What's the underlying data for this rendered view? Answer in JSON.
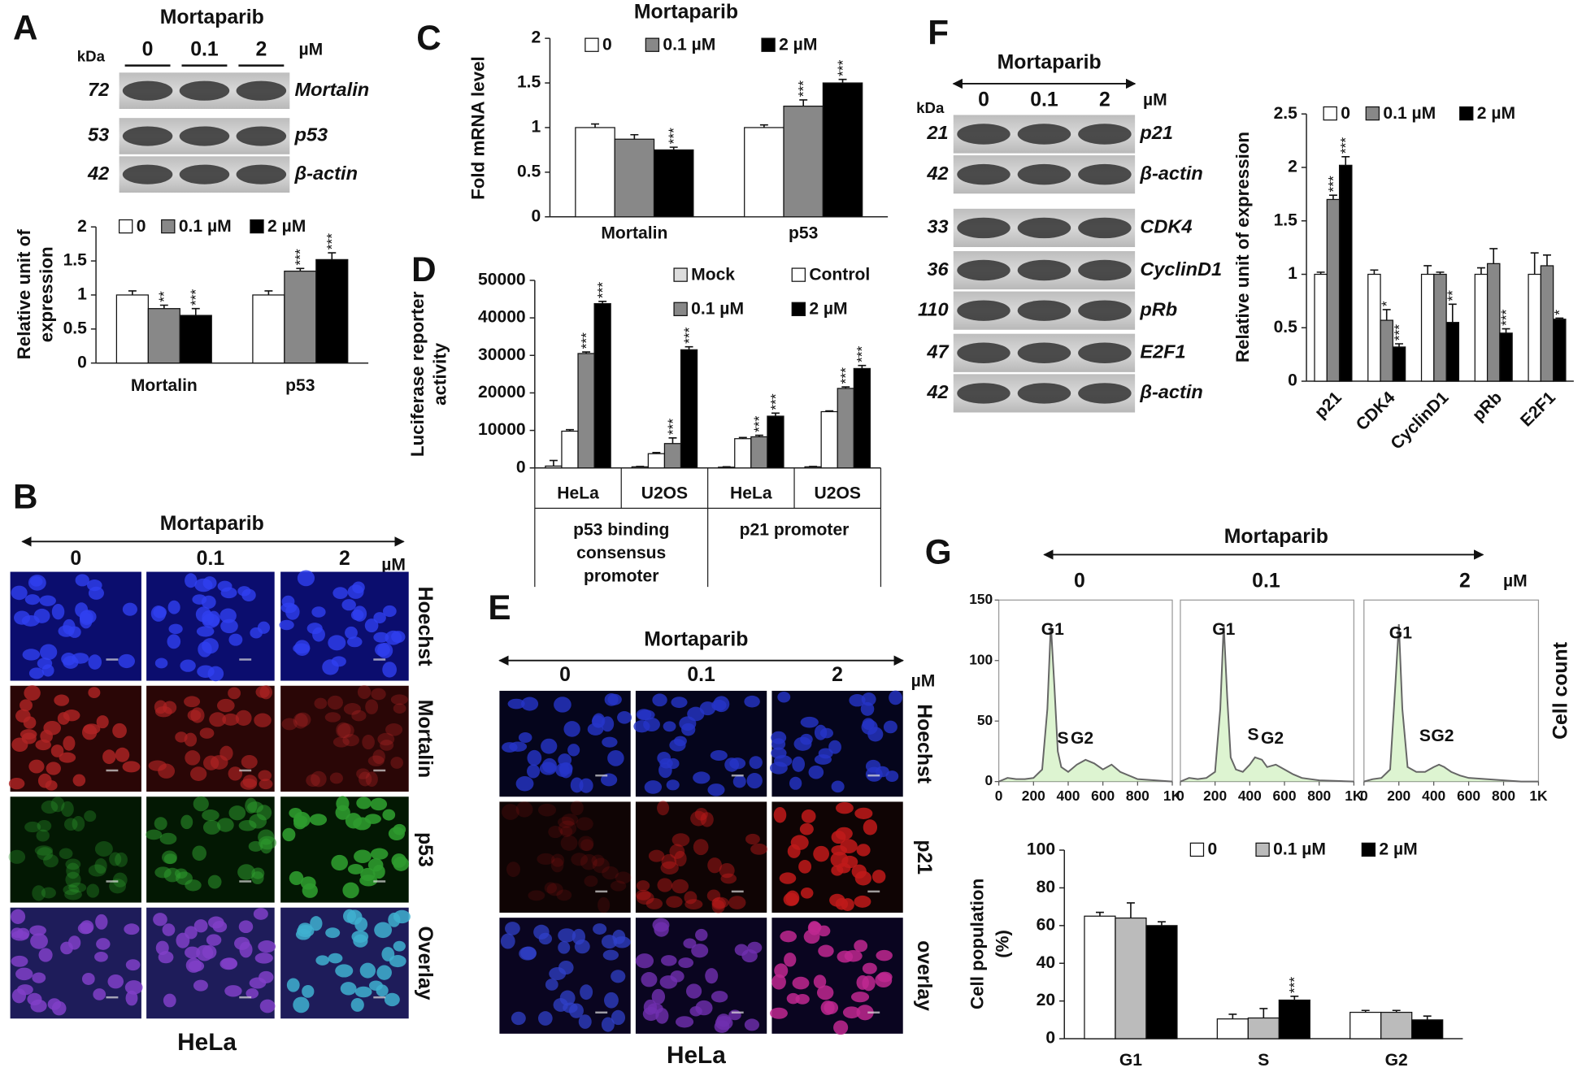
{
  "chart_data": [
    {
      "type": "bar",
      "ylabel": [
        "Relative unit of",
        "expression"
      ],
      "categories": [
        "Mortalin",
        "p53"
      ],
      "series": [
        {
          "name": "0",
          "color": "#ffffff",
          "values": [
            1,
            1
          ],
          "errors": [
            0.06,
            0.06
          ],
          "significance": [
            null,
            null
          ]
        },
        {
          "name": "0.1 µM",
          "color": "#888888",
          "values": [
            0.8,
            1.35
          ],
          "errors": [
            0.05,
            0.04
          ],
          "significance": [
            "**",
            "***"
          ]
        },
        {
          "name": "2 µM",
          "color": "#000000",
          "values": [
            0.7,
            1.52
          ],
          "errors": [
            0.1,
            0.1
          ],
          "significance": [
            "***",
            "***"
          ]
        }
      ],
      "ylim": [
        0,
        2
      ],
      "yticks": [
        0,
        0.5,
        1,
        1.5,
        2
      ]
    },
    {
      "type": "bar",
      "title": "Mortaparib",
      "ylabel": [
        "Fold mRNA level"
      ],
      "categories": [
        "Mortalin",
        "p53"
      ],
      "series": [
        {
          "name": "0",
          "color": "#ffffff",
          "values": [
            1,
            1
          ],
          "errors": [
            0.04,
            0.03
          ],
          "significance": [
            null,
            null
          ]
        },
        {
          "name": "0.1 µM",
          "color": "#888888",
          "values": [
            0.87,
            1.24
          ],
          "errors": [
            0.05,
            0.07
          ],
          "significance": [
            null,
            "***"
          ]
        },
        {
          "name": "2 µM",
          "color": "#000000",
          "values": [
            0.75,
            1.5
          ],
          "errors": [
            0.03,
            0.04
          ],
          "significance": [
            "***",
            "***"
          ]
        }
      ],
      "ylim": [
        0,
        2
      ],
      "yticks": [
        0,
        0.5,
        1,
        1.5,
        2
      ]
    },
    {
      "type": "bar",
      "ylabel": [
        "Luciferase reporter",
        "activity"
      ],
      "categories": [
        "HeLa",
        "U2OS",
        "HeLa",
        "U2OS"
      ],
      "groups": [
        [
          "p53 binding",
          "consensus",
          "promoter"
        ],
        [
          "p21 promoter"
        ]
      ],
      "series": [
        {
          "name": "Mock",
          "color": "#dddddd",
          "values": [
            500,
            300,
            200,
            300
          ],
          "errors": [
            1500,
            100,
            100,
            100
          ],
          "significance": [
            null,
            null,
            null,
            null
          ]
        },
        {
          "name": "Control",
          "color": "#ffffff",
          "values": [
            9800,
            3800,
            7800,
            15000
          ],
          "errors": [
            400,
            300,
            300,
            200
          ],
          "significance": [
            null,
            null,
            null,
            null
          ]
        },
        {
          "name": "0.1 µM",
          "color": "#888888",
          "values": [
            30500,
            6500,
            8300,
            21200
          ],
          "errors": [
            400,
            1500,
            400,
            400
          ],
          "significance": [
            "***",
            "***",
            "***",
            "***"
          ]
        },
        {
          "name": "2 µM",
          "color": "#000000",
          "values": [
            43800,
            31500,
            13800,
            26500
          ],
          "errors": [
            600,
            800,
            800,
            800
          ],
          "significance": [
            "***",
            "***",
            "***",
            "***"
          ]
        }
      ],
      "ylim": [
        0,
        50000
      ],
      "yticks": [
        0,
        10000,
        20000,
        30000,
        40000,
        50000
      ]
    },
    {
      "type": "bar",
      "ylabel": [
        "Relative unit of expression"
      ],
      "categories": [
        "p21",
        "CDK4",
        "CyclinD1",
        "pRb",
        "E2F1"
      ],
      "series": [
        {
          "name": "0",
          "color": "#ffffff",
          "values": [
            1,
            1,
            1,
            1,
            1
          ],
          "errors": [
            0.02,
            0.04,
            0.08,
            0.06,
            0.2
          ],
          "significance": [
            null,
            null,
            null,
            null,
            null
          ]
        },
        {
          "name": "0.1 µM",
          "color": "#888888",
          "values": [
            1.7,
            0.57,
            1.0,
            1.1,
            1.08
          ],
          "errors": [
            0.04,
            0.1,
            0.02,
            0.14,
            0.1
          ],
          "significance": [
            "***",
            "*",
            null,
            null,
            null
          ]
        },
        {
          "name": "2 µM",
          "color": "#000000",
          "values": [
            2.02,
            0.32,
            0.55,
            0.45,
            0.58
          ],
          "errors": [
            0.08,
            0.03,
            0.17,
            0.04,
            0.01
          ],
          "significance": [
            "***",
            "***",
            "**",
            "***",
            "*"
          ]
        }
      ],
      "ylim": [
        0,
        2.5
      ],
      "yticks": [
        0,
        0.5,
        1,
        1.5,
        2,
        2.5
      ]
    },
    {
      "type": "line",
      "color": "#666666",
      "x": [
        0,
        50,
        100,
        150,
        200,
        250,
        280,
        300,
        320,
        340,
        360,
        400,
        450,
        500,
        550,
        600,
        650,
        700,
        800,
        900,
        1000
      ],
      "values": [
        0,
        3,
        2,
        2,
        3,
        10,
        60,
        130,
        80,
        25,
        12,
        8,
        14,
        18,
        15,
        10,
        14,
        8,
        2,
        1,
        0
      ],
      "annotations": [
        {
          "text": "G1",
          "x": 310,
          "y": 125
        },
        {
          "text": "S",
          "x": 370,
          "y": 35
        },
        {
          "text": "G2",
          "x": 480,
          "y": 35
        }
      ],
      "xlim": [
        0,
        1000
      ],
      "xticks": [
        0,
        200,
        400,
        600,
        800,
        {
          "value": 1000,
          "label": "1K"
        }
      ],
      "ylim": [
        0,
        150
      ],
      "yticks": [
        0,
        50,
        100,
        150
      ]
    },
    {
      "type": "line",
      "color": "#666666",
      "x": [
        0,
        50,
        100,
        150,
        200,
        230,
        250,
        270,
        290,
        320,
        360,
        400,
        430,
        470,
        500,
        550,
        600,
        650,
        700,
        800,
        1000
      ],
      "values": [
        0,
        3,
        2,
        3,
        8,
        60,
        130,
        70,
        20,
        10,
        8,
        14,
        20,
        18,
        12,
        14,
        10,
        6,
        3,
        1,
        0
      ],
      "annotations": [
        {
          "text": "G1",
          "x": 250,
          "y": 125
        },
        {
          "text": "S",
          "x": 420,
          "y": 38
        },
        {
          "text": "G2",
          "x": 530,
          "y": 35
        }
      ],
      "xlim": [
        0,
        1000
      ],
      "xticks": [
        0,
        200,
        400,
        600,
        800,
        {
          "value": 1000,
          "label": "1K"
        }
      ],
      "ylim": [
        0,
        150
      ]
    },
    {
      "type": "line",
      "color": "#666666",
      "x": [
        0,
        50,
        100,
        150,
        180,
        200,
        220,
        250,
        300,
        350,
        400,
        430,
        460,
        500,
        550,
        600,
        700,
        800,
        900,
        1000
      ],
      "values": [
        0,
        2,
        3,
        10,
        80,
        130,
        60,
        12,
        8,
        8,
        12,
        14,
        12,
        8,
        5,
        3,
        2,
        1,
        0,
        0
      ],
      "annotations": [
        {
          "text": "G1",
          "x": 210,
          "y": 122
        },
        {
          "text": "S",
          "x": 350,
          "y": 37
        },
        {
          "text": "G2",
          "x": 450,
          "y": 37
        }
      ],
      "xlim": [
        0,
        1000
      ],
      "xticks": [
        0,
        200,
        400,
        600,
        800,
        {
          "value": 1000,
          "label": "1K"
        }
      ],
      "ylim": [
        0,
        150
      ]
    },
    {
      "type": "bar",
      "ylabel": [
        "Cell population",
        "(%)"
      ],
      "categories": [
        "G1",
        "S",
        "G2"
      ],
      "series": [
        {
          "name": "0",
          "color": "#ffffff",
          "values": [
            65,
            10.5,
            14
          ],
          "errors": [
            2,
            2.5,
            1
          ],
          "significance": [
            null,
            null,
            null
          ]
        },
        {
          "name": "0.1 µM",
          "color": "#bbbbbb",
          "values": [
            64,
            11,
            14
          ],
          "errors": [
            8,
            5,
            1
          ],
          "significance": [
            null,
            null,
            null
          ]
        },
        {
          "name": "2 µM",
          "color": "#000000",
          "values": [
            60,
            20.5,
            10
          ],
          "errors": [
            2,
            2,
            2
          ],
          "significance": [
            null,
            "***",
            null
          ]
        }
      ],
      "ylim": [
        0,
        100
      ],
      "yticks": [
        0,
        20,
        40,
        60,
        80,
        100
      ]
    }
  ],
  "panels": {
    "letters": [
      "A",
      "B",
      "C",
      "D",
      "E",
      "F",
      "G"
    ],
    "blot_A": {
      "title": "Mortaparib",
      "kda": "kDa",
      "doses": [
        "0",
        "0.1",
        "2"
      ],
      "unit": "µM",
      "bands": [
        {
          "kda": "72",
          "name": "Mortalin"
        },
        {
          "kda": "53",
          "name": "p53"
        },
        {
          "kda": "42",
          "name": "β-actin"
        }
      ]
    },
    "micro_B": {
      "title": "Mortaparib",
      "doses": [
        "0",
        "0.1",
        "2"
      ],
      "unit": "µM",
      "rows": [
        "Hoechst",
        "Mortalin",
        "p53",
        "Overlay"
      ],
      "cell": "HeLa"
    },
    "micro_E": {
      "title": "Mortaparib",
      "doses": [
        "0",
        "0.1",
        "2"
      ],
      "unit": "µM",
      "rows": [
        "Hoechst",
        "p21",
        "overlay"
      ],
      "cell": "HeLa"
    },
    "blot_F": {
      "title": "Mortaparib",
      "kda": "kDa",
      "doses": [
        "0",
        "0.1",
        "2"
      ],
      "unit": "µM",
      "bands": [
        {
          "kda": "21",
          "name": "p21"
        },
        {
          "kda": "42",
          "name": "β-actin"
        },
        {
          "kda": "33",
          "name": "CDK4"
        },
        {
          "kda": "36",
          "name": "CyclinD1"
        },
        {
          "kda": "110",
          "name": "pRb"
        },
        {
          "kda": "47",
          "name": "E2F1"
        },
        {
          "kda": "42",
          "name": "β-actin"
        }
      ]
    },
    "flow_G": {
      "title": "Mortaparib",
      "doses": [
        "0",
        "0.1",
        "2"
      ],
      "unit": "µM",
      "ylabel": "Cell count"
    }
  }
}
